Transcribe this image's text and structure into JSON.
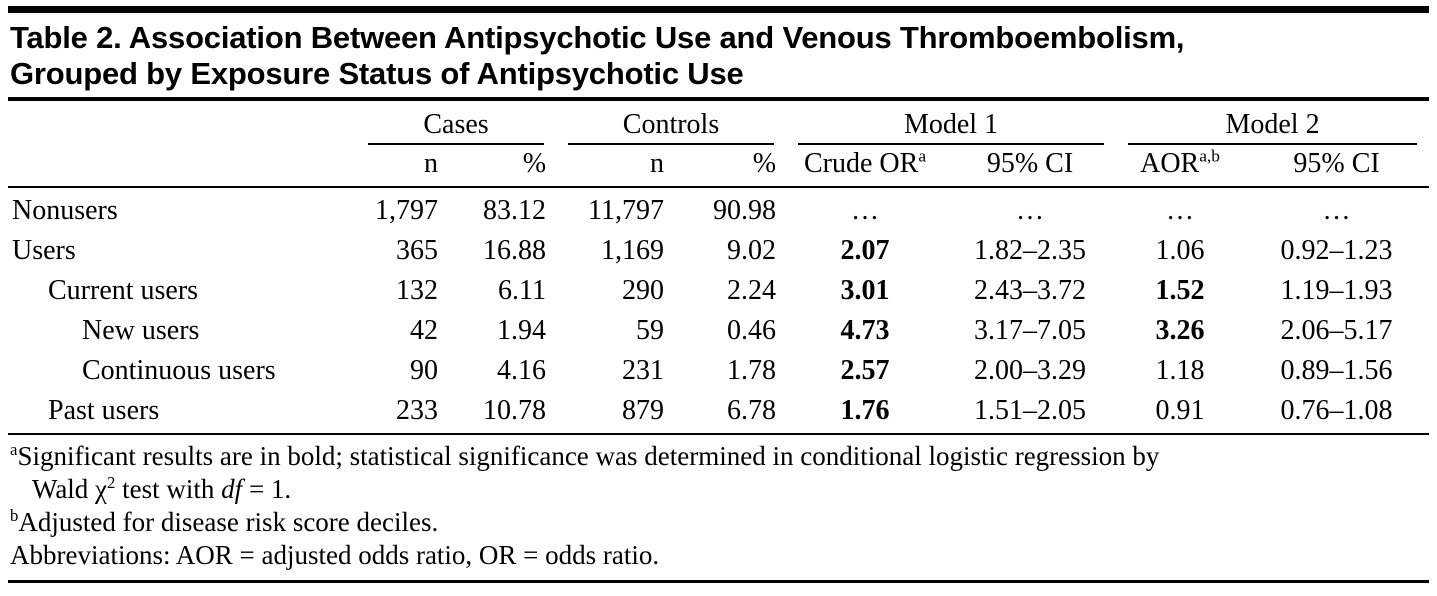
{
  "title": {
    "line1": "Table 2. Association Between Antipsychotic Use and Venous Thromboembolism,",
    "line2": "Grouped by Exposure Status of Antipsychotic Use"
  },
  "table": {
    "groups": [
      {
        "label": "Cases"
      },
      {
        "label": "Controls"
      },
      {
        "label": "Model 1"
      },
      {
        "label": "Model 2"
      }
    ],
    "columns": [
      {
        "label": "n",
        "sup": ""
      },
      {
        "label": "%",
        "sup": ""
      },
      {
        "label": "n",
        "sup": ""
      },
      {
        "label": "%",
        "sup": ""
      },
      {
        "label": "Crude OR",
        "sup": "a"
      },
      {
        "label": "95% CI",
        "sup": ""
      },
      {
        "label": "AOR",
        "sup": "a,b"
      },
      {
        "label": "95% CI",
        "sup": ""
      }
    ],
    "column_keys": [
      "cases-n",
      "cases-percent",
      "controls-n",
      "controls-percent",
      "model1-crude-or",
      "model1-95ci",
      "model2-aor",
      "model2-95ci"
    ],
    "rows": [
      {
        "label": "Nonusers",
        "indent": 0,
        "cells": [
          {
            "v": "1,797"
          },
          {
            "v": "83.12"
          },
          {
            "v": "11,797"
          },
          {
            "v": "90.98"
          },
          {
            "v": "…"
          },
          {
            "v": "…"
          },
          {
            "v": "…"
          },
          {
            "v": "…"
          }
        ]
      },
      {
        "label": "Users",
        "indent": 0,
        "cells": [
          {
            "v": "365"
          },
          {
            "v": "16.88"
          },
          {
            "v": "1,169"
          },
          {
            "v": "9.02"
          },
          {
            "v": "2.07",
            "b": true
          },
          {
            "v": "1.82–2.35"
          },
          {
            "v": "1.06"
          },
          {
            "v": "0.92–1.23"
          }
        ]
      },
      {
        "label": "Current users",
        "indent": 1,
        "cells": [
          {
            "v": "132"
          },
          {
            "v": "6.11"
          },
          {
            "v": "290"
          },
          {
            "v": "2.24"
          },
          {
            "v": "3.01",
            "b": true
          },
          {
            "v": "2.43–3.72"
          },
          {
            "v": "1.52",
            "b": true
          },
          {
            "v": "1.19–1.93"
          }
        ]
      },
      {
        "label": "New users",
        "indent": 2,
        "cells": [
          {
            "v": "42"
          },
          {
            "v": "1.94"
          },
          {
            "v": "59"
          },
          {
            "v": "0.46"
          },
          {
            "v": "4.73",
            "b": true
          },
          {
            "v": "3.17–7.05"
          },
          {
            "v": "3.26",
            "b": true
          },
          {
            "v": "2.06–5.17"
          }
        ]
      },
      {
        "label": "Continuous users",
        "indent": 2,
        "cells": [
          {
            "v": "90"
          },
          {
            "v": "4.16"
          },
          {
            "v": "231"
          },
          {
            "v": "1.78"
          },
          {
            "v": "2.57",
            "b": true
          },
          {
            "v": "2.00–3.29"
          },
          {
            "v": "1.18"
          },
          {
            "v": "0.89–1.56"
          }
        ]
      },
      {
        "label": "Past users",
        "indent": 1,
        "cells": [
          {
            "v": "233"
          },
          {
            "v": "10.78"
          },
          {
            "v": "879"
          },
          {
            "v": "6.78"
          },
          {
            "v": "1.76",
            "b": true
          },
          {
            "v": "1.51–2.05"
          },
          {
            "v": "0.91"
          },
          {
            "v": "0.76–1.08"
          }
        ]
      }
    ]
  },
  "footnotes": {
    "a": {
      "marker": "a",
      "line1": "Significant results are in bold; statistical significance was determined in conditional logistic regression by",
      "line2_pre": "Wald χ",
      "chi_sup": "2",
      "line2_mid": " test with ",
      "line2_df": "df",
      "line2_end": " = 1."
    },
    "b": {
      "marker": "b",
      "text": "Adjusted for disease risk score deciles."
    },
    "abbreviations": {
      "text": "Abbreviations: AOR = adjusted odds ratio, OR = odds ratio."
    }
  }
}
